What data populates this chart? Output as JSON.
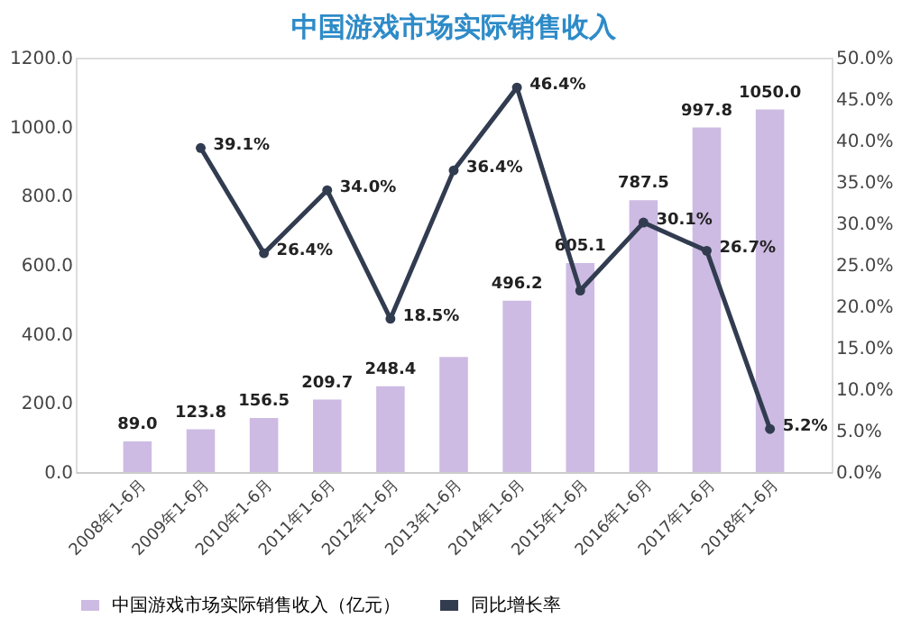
{
  "chart_data": {
    "type": "bar",
    "title": "中国游戏市场实际销售收入",
    "categories": [
      "2008年1-6月",
      "2009年1-6月",
      "2010年1-6月",
      "2011年1-6月",
      "2012年1-6月",
      "2013年1-6月",
      "2014年1-6月",
      "2015年1-6月",
      "2016年1-6月",
      "2017年1-6月",
      "2018年1-6月"
    ],
    "series": [
      {
        "name": "中国游戏市场实际销售收入（亿元）",
        "color": "#cdbbe3",
        "values": [
          89.0,
          123.8,
          156.5,
          209.7,
          248.4,
          333,
          496.2,
          605.1,
          787.5,
          997.8,
          1050.0
        ],
        "value_labels": [
          "89.0",
          "123.8",
          "156.5",
          "209.7",
          "248.4",
          null,
          "496.2",
          "605.1",
          "787.5",
          "997.8",
          "1050.0"
        ]
      },
      {
        "name": "同比增长率",
        "type": "line",
        "axis": "y2",
        "color": "#323c50",
        "values": [
          null,
          39.1,
          26.4,
          34.0,
          18.5,
          36.4,
          46.4,
          21.9,
          30.1,
          26.7,
          5.2
        ],
        "value_labels": [
          null,
          "39.1%",
          "26.4%",
          "34.0%",
          "18.5%",
          "36.4%",
          "46.4%",
          null,
          "30.1%",
          "26.7%",
          "5.2%"
        ]
      }
    ],
    "ylim": [
      0,
      1200
    ],
    "yticks": [
      {
        "value": 0,
        "label": "0.0"
      },
      {
        "value": 200,
        "label": "200.0"
      },
      {
        "value": 400,
        "label": "400.0"
      },
      {
        "value": 600,
        "label": "600.0"
      },
      {
        "value": 800,
        "label": "800.0"
      },
      {
        "value": 1000,
        "label": "1000.0"
      },
      {
        "value": 1200,
        "label": "1200.0"
      }
    ],
    "y2lim": [
      0,
      50
    ],
    "y2ticks": [
      {
        "value": 0,
        "label": "0.0%"
      },
      {
        "value": 5,
        "label": "5.0%"
      },
      {
        "value": 10,
        "label": "10.0%"
      },
      {
        "value": 15,
        "label": "15.0%"
      },
      {
        "value": 20,
        "label": "20.0%"
      },
      {
        "value": 25,
        "label": "25.0%"
      },
      {
        "value": 30,
        "label": "30.0%"
      },
      {
        "value": 35,
        "label": "35.0%"
      },
      {
        "value": 40,
        "label": "40.0%"
      },
      {
        "value": 45,
        "label": "45.0%"
      },
      {
        "value": 50,
        "label": "50.0%"
      }
    ],
    "grid": false,
    "legend": "bottom",
    "marker": "circle",
    "line_style": "solid"
  }
}
